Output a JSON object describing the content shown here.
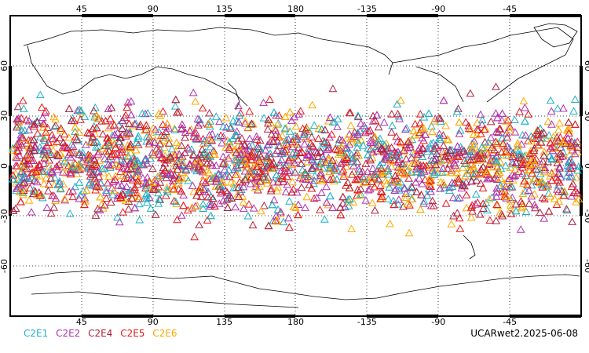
{
  "map": {
    "projection": "cylindrical",
    "lon_range": [
      0,
      360
    ],
    "lat_range": [
      -90,
      90
    ],
    "lon_ticks": [
      45,
      90,
      135,
      180,
      -135,
      -90,
      -45
    ],
    "lat_ticks": [
      60,
      30,
      0,
      -30,
      -60
    ],
    "grid": "dotted"
  },
  "legend": [
    {
      "name": "C2E1",
      "color": "#1ab3c8"
    },
    {
      "name": "C2E2",
      "color": "#b030b0"
    },
    {
      "name": "C2E4",
      "color": "#b0203c"
    },
    {
      "name": "C2E5",
      "color": "#e8181c"
    },
    {
      "name": "C2E6",
      "color": "#ffa800"
    }
  ],
  "footer": {
    "stamp": "UCARwet2.2025-06-08"
  },
  "observations": {
    "marker": "triangle-open",
    "lat_band": [
      -45,
      50
    ],
    "approx_count_shown": 2600
  }
}
